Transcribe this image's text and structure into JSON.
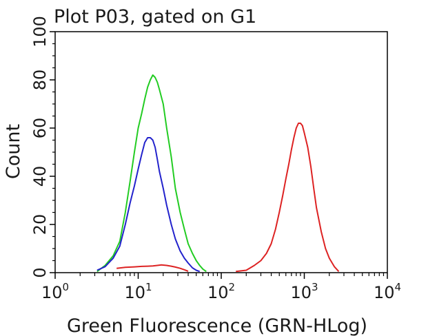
{
  "chart_data": {
    "type": "line",
    "title": "Plot P03, gated on G1",
    "xlabel": "Green Fluorescence (GRN-HLog)",
    "ylabel": "Count",
    "x_scale": "log",
    "xlim": [
      1,
      10000
    ],
    "ylim": [
      0,
      100
    ],
    "x_ticks": [
      {
        "base": "10",
        "exp": "0",
        "value": 1
      },
      {
        "base": "10",
        "exp": "1",
        "value": 10
      },
      {
        "base": "10",
        "exp": "2",
        "value": 100
      },
      {
        "base": "10",
        "exp": "3",
        "value": 1000
      },
      {
        "base": "10",
        "exp": "4",
        "value": 10000
      }
    ],
    "y_ticks": [
      "0",
      "20",
      "40",
      "60",
      "80",
      "100"
    ],
    "grid": false,
    "series": [
      {
        "color": "#22cc22",
        "x": [
          3.2,
          4,
          5,
          6,
          7,
          8,
          9,
          10,
          11,
          12,
          13,
          14,
          15,
          16,
          17,
          18,
          20,
          22,
          25,
          28,
          32,
          36,
          40,
          45,
          50,
          55,
          60,
          66
        ],
        "y": [
          0.5,
          3,
          7,
          13,
          25,
          38,
          50,
          60,
          66,
          72,
          77,
          80,
          82,
          81,
          79,
          76,
          70,
          60,
          48,
          35,
          25,
          18,
          12,
          8,
          5,
          3,
          1.5,
          0.5
        ]
      },
      {
        "color": "#2222cc",
        "x": [
          3.2,
          4,
          5,
          6,
          7,
          8,
          9,
          10,
          11,
          12,
          13,
          14,
          15,
          16,
          17,
          18,
          20,
          22,
          25,
          28,
          32,
          36,
          40,
          45,
          50,
          55
        ],
        "y": [
          1,
          2.5,
          6,
          11,
          20,
          29,
          36,
          43,
          49,
          54,
          56,
          56,
          55,
          52,
          47,
          42,
          35,
          28,
          20,
          14,
          9,
          6,
          4,
          2,
          1,
          0.5
        ]
      },
      {
        "color": "#dd2222",
        "x": [
          5.5,
          7,
          9,
          11,
          13,
          15,
          17,
          19,
          22,
          25,
          28,
          32,
          36,
          40
        ],
        "y": [
          1.8,
          2.2,
          2.4,
          2.6,
          2.7,
          2.8,
          3.0,
          3.2,
          3.0,
          2.7,
          2.3,
          1.8,
          1.2,
          0.6
        ]
      },
      {
        "color": "#dd2222",
        "x": [
          150,
          200,
          250,
          300,
          350,
          400,
          450,
          500,
          550,
          600,
          650,
          700,
          750,
          800,
          850,
          900,
          950,
          1000,
          1100,
          1200,
          1300,
          1400,
          1600,
          1800,
          2000,
          2300,
          2600
        ],
        "y": [
          0.5,
          1,
          3,
          5,
          8,
          12,
          18,
          25,
          32,
          39,
          45,
          51,
          56,
          60,
          62,
          62,
          61,
          58,
          52,
          44,
          35,
          27,
          17,
          10,
          6,
          2.5,
          0.5
        ]
      }
    ]
  }
}
